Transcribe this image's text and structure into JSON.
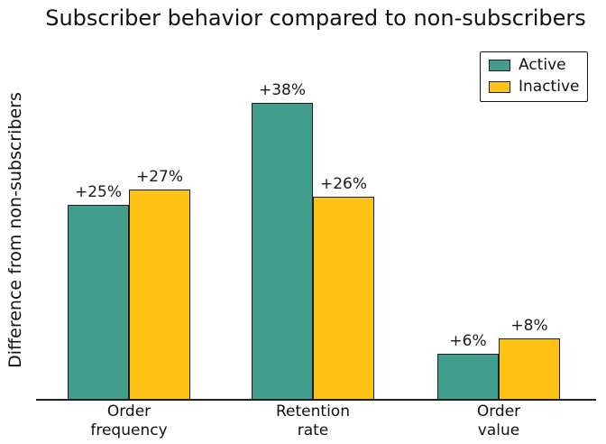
{
  "title": "Subscriber behavior compared to non-subscribers",
  "chart_data": {
    "type": "bar",
    "title": "Subscriber behavior compared to non-subscribers",
    "categories": [
      "Order frequency",
      "Retention rate",
      "Order value"
    ],
    "series": [
      {
        "name": "Active",
        "color": "#439D8C",
        "values": [
          25,
          38,
          6
        ],
        "labels": [
          "+25%",
          "+38%",
          "+6%"
        ]
      },
      {
        "name": "Inactive",
        "color": "#FDC213",
        "values": [
          27,
          26,
          8
        ],
        "labels": [
          "+27%",
          "+26%",
          "+8%"
        ]
      }
    ],
    "xlabel": "",
    "ylabel": "Difference from non-subscribers",
    "ylim": [
      0,
      40
    ],
    "grid": false,
    "legend_position": "upper right",
    "bar_edge_color": "#1f1f1f",
    "text_color": "#111111",
    "background_color": "#ffffff"
  }
}
